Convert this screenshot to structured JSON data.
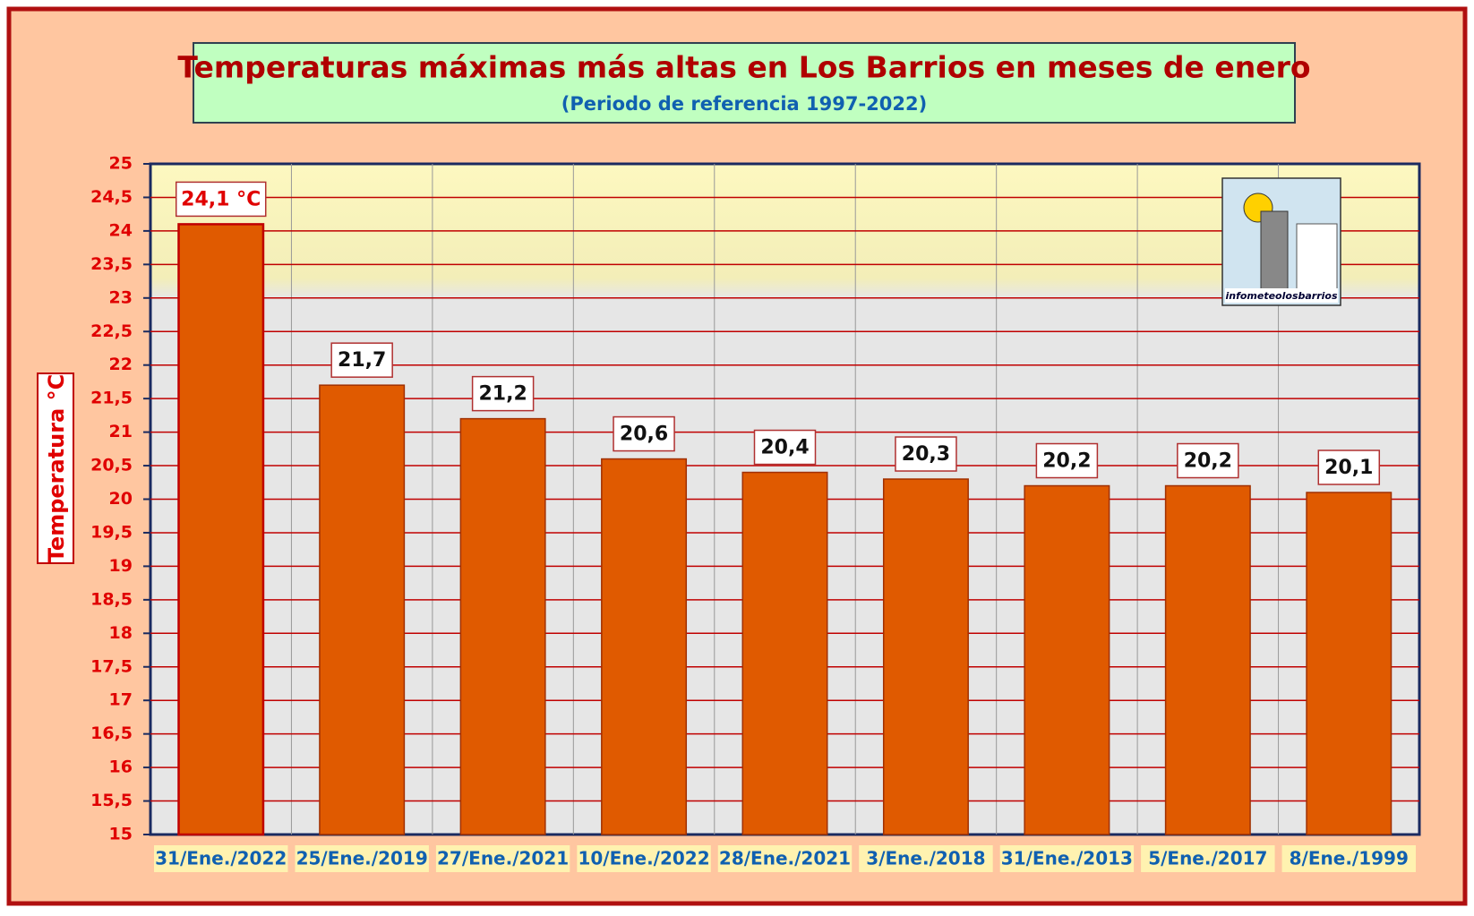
{
  "chart_data": {
    "type": "bar",
    "title": "Temperaturas máximas más altas en Los Barrios en meses de enero",
    "subtitle": "(Periodo de referencia 1997-2022)",
    "y_label": "Temperatura °C",
    "logo_text": "infometeolosbarrios",
    "categories": [
      "31/Ene./2022",
      "25/Ene./2019",
      "27/Ene./2021",
      "10/Ene./2022",
      "28/Ene./2021",
      "3/Ene./2018",
      "31/Ene./2013",
      "5/Ene./2017",
      "8/Ene./1999"
    ],
    "values": [
      24.1,
      21.7,
      21.2,
      20.6,
      20.4,
      20.3,
      20.2,
      20.2,
      20.1
    ],
    "value_labels": [
      "24,1 °C",
      "21,7",
      "21,2",
      "20,6",
      "20,4",
      "20,3",
      "20,2",
      "20,2",
      "20,1"
    ],
    "color": "#e05a00",
    "ylim": [
      15,
      25
    ],
    "yticks": [
      15,
      {
        "value": 15.5,
        "label": "15,5"
      },
      16,
      {
        "value": 16.5,
        "label": "16,5"
      },
      17,
      {
        "value": 17.5,
        "label": "17,5"
      },
      18,
      {
        "value": 18.5,
        "label": "18,5"
      },
      19,
      {
        "value": 19.5,
        "label": "19,5"
      },
      20,
      {
        "value": 20.5,
        "label": "20,5"
      },
      21,
      {
        "value": 21.5,
        "label": "21,5"
      },
      22,
      {
        "value": 22.5,
        "label": "22,5"
      },
      23,
      {
        "value": 23.5,
        "label": "23,5"
      },
      24,
      {
        "value": 24.5,
        "label": "24,5"
      },
      25
    ],
    "grid": true
  }
}
